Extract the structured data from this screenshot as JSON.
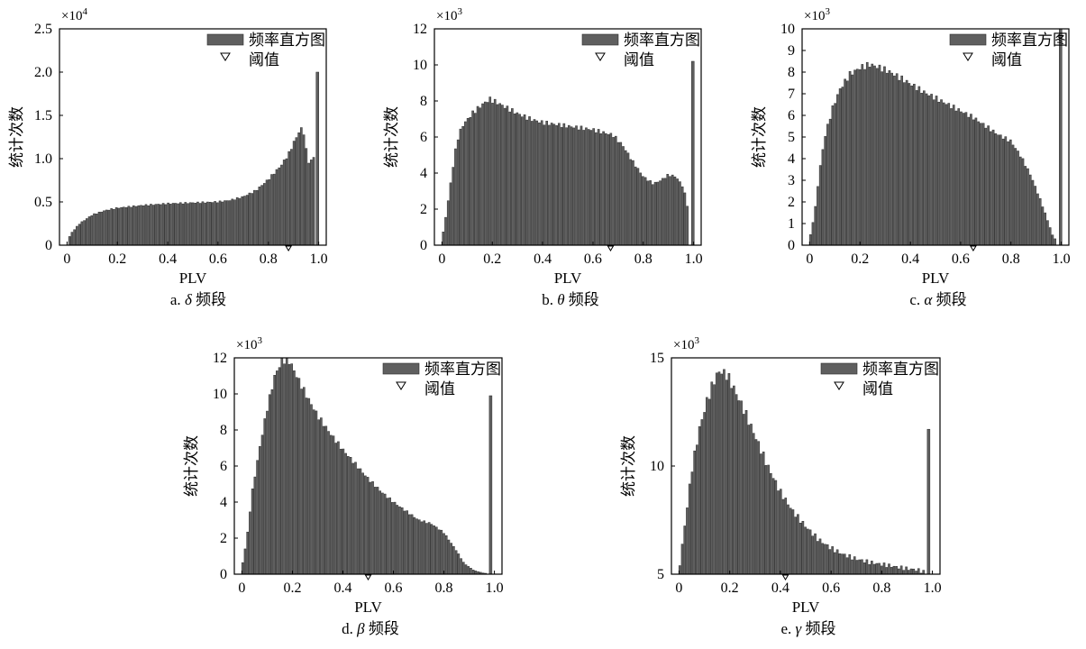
{
  "chart_data": [
    {
      "type": "bar",
      "panel_label": "a.",
      "greek": "δ",
      "suffix": "频段",
      "xlabel": "PLV",
      "ylabel": "统计次数",
      "multiplier_base": "×10",
      "multiplier_exp": "4",
      "legend_hist": "频率直方图",
      "legend_threshold": "阈值",
      "legend_position": "top-right",
      "xlim": [
        -0.03,
        1.03
      ],
      "ylim": [
        0,
        2.5
      ],
      "xticks": [
        "0",
        "0.2",
        "0.4",
        "0.6",
        "0.8",
        "1.0"
      ],
      "yticks": [
        "0",
        "0.5",
        "1.0",
        "1.5",
        "2.0",
        "2.5"
      ],
      "threshold": 0.88,
      "bin_start": 0.01,
      "bin_end": 0.98,
      "profile": [
        [
          0,
          0.05
        ],
        [
          0.02,
          0.15
        ],
        [
          0.05,
          0.25
        ],
        [
          0.1,
          0.35
        ],
        [
          0.15,
          0.4
        ],
        [
          0.2,
          0.43
        ],
        [
          0.3,
          0.46
        ],
        [
          0.4,
          0.48
        ],
        [
          0.5,
          0.49
        ],
        [
          0.6,
          0.5
        ],
        [
          0.65,
          0.52
        ],
        [
          0.7,
          0.56
        ],
        [
          0.75,
          0.63
        ],
        [
          0.8,
          0.76
        ],
        [
          0.85,
          0.92
        ],
        [
          0.88,
          1.05
        ],
        [
          0.9,
          1.18
        ],
        [
          0.92,
          1.3
        ],
        [
          0.935,
          1.36
        ],
        [
          0.945,
          1.25
        ],
        [
          0.955,
          0.98
        ],
        [
          0.965,
          0.95
        ],
        [
          0.98,
          1.02
        ]
      ],
      "spike_x": 0.995,
      "spike_value": 2.0
    },
    {
      "type": "bar",
      "panel_label": "b.",
      "greek": "θ",
      "suffix": "频段",
      "xlabel": "PLV",
      "ylabel": "统计次数",
      "multiplier_base": "×10",
      "multiplier_exp": "3",
      "legend_hist": "频率直方图",
      "legend_threshold": "阈值",
      "legend_position": "top-right",
      "xlim": [
        -0.03,
        1.03
      ],
      "ylim": [
        0,
        12
      ],
      "xticks": [
        "0",
        "0.2",
        "0.4",
        "0.6",
        "0.8",
        "1.0"
      ],
      "yticks": [
        "0",
        "2",
        "4",
        "6",
        "8",
        "10",
        "12"
      ],
      "threshold": 0.67,
      "bin_start": 0.005,
      "bin_end": 0.975,
      "profile": [
        [
          0,
          0.3
        ],
        [
          0.02,
          2.0
        ],
        [
          0.04,
          4.0
        ],
        [
          0.06,
          5.8
        ],
        [
          0.08,
          6.6
        ],
        [
          0.12,
          7.3
        ],
        [
          0.16,
          7.8
        ],
        [
          0.19,
          8.1
        ],
        [
          0.22,
          7.9
        ],
        [
          0.26,
          7.6
        ],
        [
          0.3,
          7.3
        ],
        [
          0.35,
          7.0
        ],
        [
          0.4,
          6.8
        ],
        [
          0.5,
          6.6
        ],
        [
          0.6,
          6.4
        ],
        [
          0.68,
          6.1
        ],
        [
          0.72,
          5.5
        ],
        [
          0.76,
          4.6
        ],
        [
          0.8,
          3.8
        ],
        [
          0.84,
          3.4
        ],
        [
          0.87,
          3.6
        ],
        [
          0.9,
          3.9
        ],
        [
          0.93,
          3.8
        ],
        [
          0.96,
          3.2
        ],
        [
          0.975,
          2.2
        ]
      ],
      "spike_x": 0.997,
      "spike_value": 10.2
    },
    {
      "type": "bar",
      "panel_label": "c.",
      "greek": "α",
      "suffix": "频段",
      "xlabel": "PLV",
      "ylabel": "统计次数",
      "multiplier_base": "×10",
      "multiplier_exp": "3",
      "legend_hist": "频率直方图",
      "legend_threshold": "阈值",
      "legend_position": "top-right",
      "xlim": [
        -0.03,
        1.03
      ],
      "ylim": [
        0,
        10
      ],
      "xticks": [
        "0",
        "0.2",
        "0.4",
        "0.6",
        "0.8",
        "1.0"
      ],
      "yticks": [
        "0",
        "1",
        "2",
        "3",
        "4",
        "5",
        "6",
        "7",
        "8",
        "9",
        "10"
      ],
      "threshold": 0.65,
      "bin_start": 0.003,
      "bin_end": 0.975,
      "profile": [
        [
          0,
          0.3
        ],
        [
          0.02,
          1.5
        ],
        [
          0.04,
          3.5
        ],
        [
          0.06,
          5.0
        ],
        [
          0.09,
          6.3
        ],
        [
          0.12,
          7.2
        ],
        [
          0.16,
          7.9
        ],
        [
          0.2,
          8.2
        ],
        [
          0.24,
          8.35
        ],
        [
          0.28,
          8.2
        ],
        [
          0.32,
          8.0
        ],
        [
          0.38,
          7.6
        ],
        [
          0.45,
          7.1
        ],
        [
          0.5,
          6.8
        ],
        [
          0.55,
          6.5
        ],
        [
          0.6,
          6.2
        ],
        [
          0.65,
          5.9
        ],
        [
          0.7,
          5.5
        ],
        [
          0.75,
          5.1
        ],
        [
          0.8,
          4.8
        ],
        [
          0.84,
          4.1
        ],
        [
          0.88,
          3.2
        ],
        [
          0.92,
          2.0
        ],
        [
          0.95,
          1.0
        ],
        [
          0.97,
          0.3
        ]
      ],
      "spike_x": 0.997,
      "spike_value": 10.0
    },
    {
      "type": "bar",
      "panel_label": "d.",
      "greek": "β",
      "suffix": "频段",
      "xlabel": "PLV",
      "ylabel": "统计次数",
      "multiplier_base": "×10",
      "multiplier_exp": "3",
      "legend_hist": "频率直方图",
      "legend_threshold": "阈值",
      "legend_position": "top-right",
      "xlim": [
        -0.03,
        1.03
      ],
      "ylim": [
        0,
        12
      ],
      "xticks": [
        "0",
        "0.2",
        "0.4",
        "0.6",
        "0.8",
        "1.0"
      ],
      "yticks": [
        "0",
        "2",
        "4",
        "6",
        "8",
        "10",
        "12"
      ],
      "threshold": 0.5,
      "bin_start": 0.003,
      "bin_end": 0.965,
      "profile": [
        [
          0,
          0.4
        ],
        [
          0.02,
          2.0
        ],
        [
          0.04,
          4.5
        ],
        [
          0.07,
          7.0
        ],
        [
          0.1,
          9.2
        ],
        [
          0.13,
          11.0
        ],
        [
          0.16,
          11.9
        ],
        [
          0.19,
          11.8
        ],
        [
          0.22,
          10.9
        ],
        [
          0.26,
          9.8
        ],
        [
          0.3,
          8.8
        ],
        [
          0.35,
          7.8
        ],
        [
          0.4,
          6.9
        ],
        [
          0.45,
          6.1
        ],
        [
          0.5,
          5.3
        ],
        [
          0.55,
          4.6
        ],
        [
          0.6,
          4.0
        ],
        [
          0.65,
          3.5
        ],
        [
          0.7,
          3.0
        ],
        [
          0.75,
          2.8
        ],
        [
          0.8,
          2.3
        ],
        [
          0.85,
          1.3
        ],
        [
          0.88,
          0.6
        ],
        [
          0.92,
          0.2
        ],
        [
          0.96,
          0.05
        ]
      ],
      "spike_x": 0.985,
      "spike_value": 9.9
    },
    {
      "type": "bar",
      "panel_label": "e.",
      "greek": "γ",
      "suffix": "频段",
      "xlabel": "PLV",
      "ylabel": "统计次数",
      "multiplier_base": "×10",
      "multiplier_exp": "3",
      "legend_hist": "频率直方图",
      "legend_threshold": "阈值",
      "legend_position": "top-right",
      "xlim": [
        -0.03,
        1.03
      ],
      "ylim": [
        5,
        15
      ],
      "xticks": [
        "0",
        "0.2",
        "0.4",
        "0.6",
        "0.8",
        "1.0"
      ],
      "yticks": [
        "5",
        "10",
        "15"
      ],
      "threshold": 0.42,
      "bin_start": 0.003,
      "bin_end": 0.965,
      "profile": [
        [
          0,
          5.2
        ],
        [
          0.02,
          7.0
        ],
        [
          0.05,
          9.8
        ],
        [
          0.08,
          11.7
        ],
        [
          0.11,
          13.0
        ],
        [
          0.14,
          14.0
        ],
        [
          0.16,
          14.4
        ],
        [
          0.19,
          14.2
        ],
        [
          0.22,
          13.5
        ],
        [
          0.26,
          12.5
        ],
        [
          0.3,
          11.4
        ],
        [
          0.35,
          10.0
        ],
        [
          0.4,
          8.8
        ],
        [
          0.45,
          7.9
        ],
        [
          0.5,
          7.2
        ],
        [
          0.55,
          6.6
        ],
        [
          0.6,
          6.2
        ],
        [
          0.65,
          5.9
        ],
        [
          0.7,
          5.7
        ],
        [
          0.75,
          5.55
        ],
        [
          0.8,
          5.45
        ],
        [
          0.85,
          5.35
        ],
        [
          0.9,
          5.25
        ],
        [
          0.94,
          5.2
        ],
        [
          0.965,
          5.1
        ]
      ],
      "spike_x": 0.985,
      "spike_value": 11.7
    }
  ]
}
